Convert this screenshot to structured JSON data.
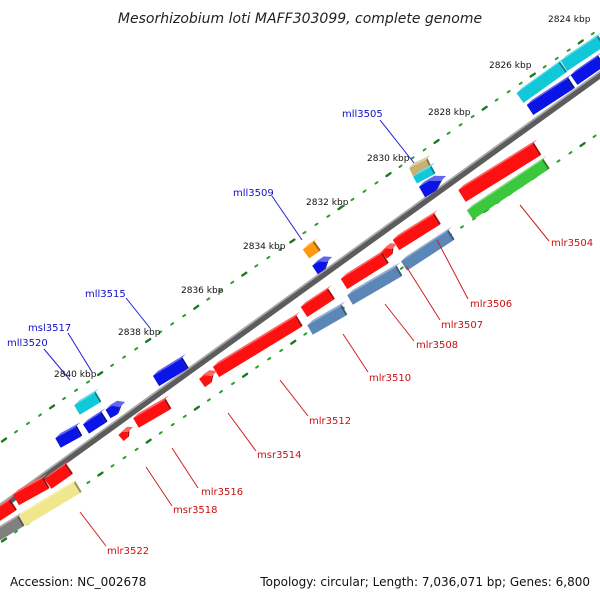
{
  "title": "Mesorhizobium loti MAFF303099, complete genome",
  "footer": {
    "accession": "Accession: NC_002678",
    "info": "Topology: circular; Length: 7,036,071 bp; Genes: 6,800"
  },
  "kbp_marks": [
    "2824 kbp",
    "2826 kbp",
    "2828 kbp",
    "2830 kbp",
    "2832 kbp",
    "2834 kbp",
    "2836 kbp",
    "2838 kbp",
    "2840 kbp"
  ],
  "top_genes": [
    "mll3505",
    "mll3509",
    "mll3515",
    "msl3517",
    "mll3520"
  ],
  "bottom_genes": [
    "mlr3504",
    "mlr3506",
    "mlr3507",
    "mlr3508",
    "mlr3510",
    "mlr3512",
    "msr3514",
    "mlr3516",
    "msr3518",
    "mlr3522"
  ],
  "colors": {
    "red": "#ff1010",
    "blue": "#0a14e6",
    "cyan": "#10c8d8",
    "steel": "#5b86b8",
    "green": "#3cc83c",
    "khaki": "#f0e68c",
    "orange": "#ff9a10",
    "tan": "#c8b070",
    "backbone": "#808080",
    "grey": "#808080"
  }
}
